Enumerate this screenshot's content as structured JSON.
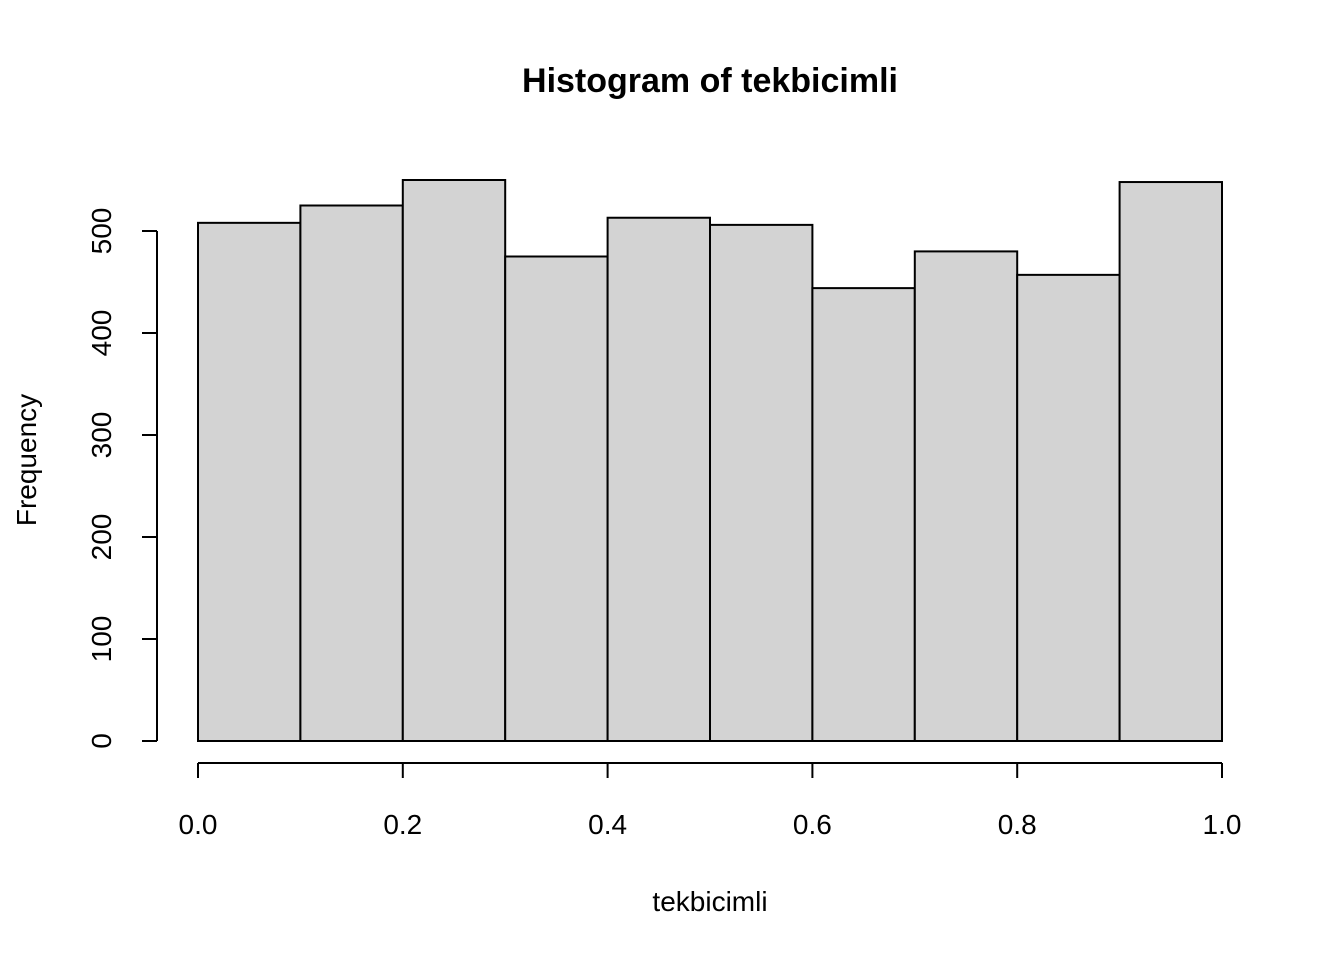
{
  "chart_data": {
    "type": "bar",
    "title": "Histogram of tekbicimli",
    "xlabel": "tekbicimli",
    "ylabel": "Frequency",
    "bins": [
      {
        "x0": 0.0,
        "x1": 0.1,
        "count": 508
      },
      {
        "x0": 0.1,
        "x1": 0.2,
        "count": 525
      },
      {
        "x0": 0.2,
        "x1": 0.3,
        "count": 550
      },
      {
        "x0": 0.3,
        "x1": 0.4,
        "count": 475
      },
      {
        "x0": 0.4,
        "x1": 0.5,
        "count": 513
      },
      {
        "x0": 0.5,
        "x1": 0.6,
        "count": 506
      },
      {
        "x0": 0.6,
        "x1": 0.7,
        "count": 444
      },
      {
        "x0": 0.7,
        "x1": 0.8,
        "count": 480
      },
      {
        "x0": 0.8,
        "x1": 0.9,
        "count": 457
      },
      {
        "x0": 0.9,
        "x1": 1.0,
        "count": 548
      }
    ],
    "x_ticks": [
      "0.0",
      "0.2",
      "0.4",
      "0.6",
      "0.8",
      "1.0"
    ],
    "y_ticks": [
      "0",
      "100",
      "200",
      "300",
      "400",
      "500"
    ],
    "xlim": [
      0,
      1
    ],
    "ylim": [
      0,
      500
    ],
    "bar_color": "#d3d3d3",
    "grid": false
  }
}
